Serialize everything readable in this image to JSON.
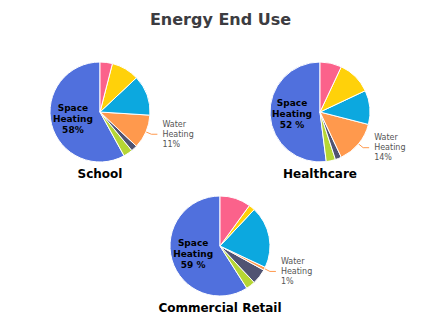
{
  "title": "Energy End Use",
  "chart_data": [
    {
      "type": "pie",
      "title": "School",
      "values": [
        58,
        3,
        2,
        11,
        13,
        9,
        4
      ],
      "value_labels": [
        "Space\nHeating\n58%",
        null,
        null,
        "Water\nHeating\n11%",
        null,
        null,
        null
      ]
    },
    {
      "type": "pie",
      "title": "Healthcare",
      "values": [
        52,
        3,
        2,
        14,
        11,
        11,
        7
      ],
      "value_labels": [
        "Space\nHeating\n52 %",
        null,
        null,
        "Water\nHeating\n14%",
        null,
        null,
        null
      ]
    },
    {
      "type": "pie",
      "title": "Commercial Retail",
      "values": [
        59,
        3,
        5,
        1,
        20,
        2,
        10
      ],
      "value_labels": [
        "Space\nHeating\n59 %",
        null,
        null,
        "Water\nHeating\n1%",
        null,
        null,
        null
      ]
    }
  ]
}
